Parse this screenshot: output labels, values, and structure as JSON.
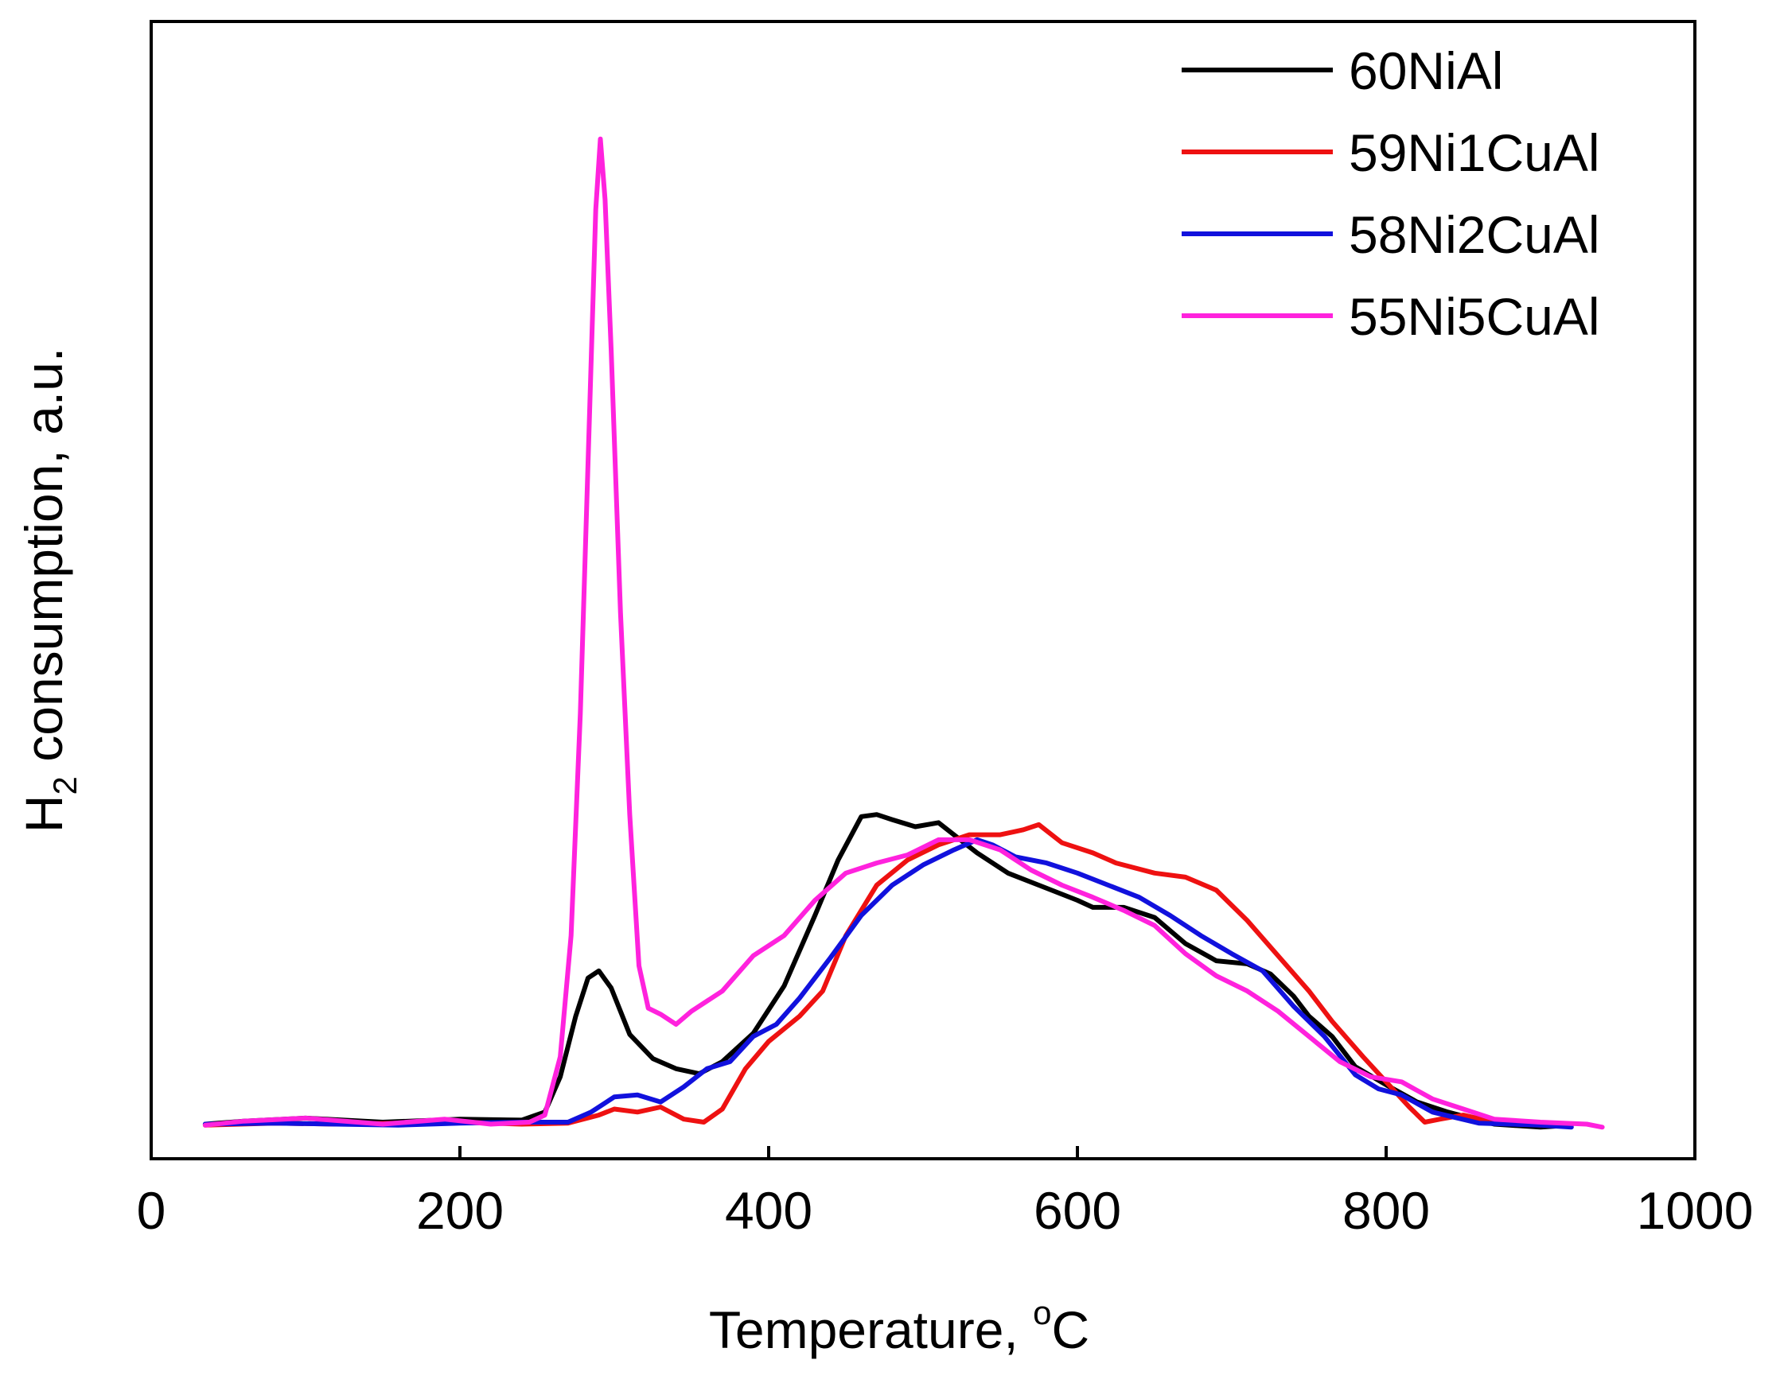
{
  "chart_data": {
    "type": "line",
    "title": "",
    "xlabel": {
      "text": "Temperature, ",
      "sup": "o",
      "unit": "C"
    },
    "ylabel": {
      "prefix": "H",
      "sub": "2",
      "suffix": " consumption, a.u."
    },
    "xlim": [
      0,
      1000
    ],
    "ylim": [
      0,
      1
    ],
    "xticks": [
      0,
      200,
      400,
      600,
      800,
      1000
    ],
    "yticks_visible": false,
    "grid": false,
    "legend_position": "top-right",
    "series": [
      {
        "name": "60NiAl",
        "color": "#000000",
        "points": [
          [
            35,
            0.013
          ],
          [
            60,
            0.016
          ],
          [
            100,
            0.019
          ],
          [
            150,
            0.015
          ],
          [
            200,
            0.018
          ],
          [
            240,
            0.017
          ],
          [
            255,
            0.025
          ],
          [
            265,
            0.06
          ],
          [
            275,
            0.12
          ],
          [
            283,
            0.158
          ],
          [
            290,
            0.165
          ],
          [
            298,
            0.148
          ],
          [
            310,
            0.102
          ],
          [
            325,
            0.078
          ],
          [
            340,
            0.068
          ],
          [
            355,
            0.063
          ],
          [
            370,
            0.075
          ],
          [
            390,
            0.103
          ],
          [
            410,
            0.15
          ],
          [
            430,
            0.22
          ],
          [
            445,
            0.275
          ],
          [
            460,
            0.318
          ],
          [
            470,
            0.32
          ],
          [
            480,
            0.315
          ],
          [
            495,
            0.308
          ],
          [
            510,
            0.312
          ],
          [
            520,
            0.3
          ],
          [
            535,
            0.282
          ],
          [
            555,
            0.262
          ],
          [
            575,
            0.25
          ],
          [
            600,
            0.235
          ],
          [
            610,
            0.228
          ],
          [
            630,
            0.228
          ],
          [
            650,
            0.218
          ],
          [
            670,
            0.192
          ],
          [
            690,
            0.175
          ],
          [
            710,
            0.172
          ],
          [
            725,
            0.162
          ],
          [
            740,
            0.14
          ],
          [
            750,
            0.12
          ],
          [
            765,
            0.1
          ],
          [
            780,
            0.07
          ],
          [
            800,
            0.052
          ],
          [
            820,
            0.035
          ],
          [
            840,
            0.025
          ],
          [
            870,
            0.013
          ],
          [
            900,
            0.01
          ],
          [
            920,
            0.012
          ]
        ]
      },
      {
        "name": "59Ni1CuAl",
        "color": "#ee1111",
        "points": [
          [
            35,
            0.012
          ],
          [
            80,
            0.014
          ],
          [
            120,
            0.013
          ],
          [
            160,
            0.014
          ],
          [
            200,
            0.015
          ],
          [
            240,
            0.013
          ],
          [
            270,
            0.014
          ],
          [
            290,
            0.022
          ],
          [
            300,
            0.028
          ],
          [
            315,
            0.025
          ],
          [
            330,
            0.03
          ],
          [
            345,
            0.018
          ],
          [
            358,
            0.015
          ],
          [
            370,
            0.028
          ],
          [
            385,
            0.068
          ],
          [
            400,
            0.095
          ],
          [
            420,
            0.12
          ],
          [
            435,
            0.145
          ],
          [
            450,
            0.2
          ],
          [
            470,
            0.25
          ],
          [
            490,
            0.275
          ],
          [
            510,
            0.29
          ],
          [
            530,
            0.3
          ],
          [
            550,
            0.3
          ],
          [
            565,
            0.305
          ],
          [
            575,
            0.31
          ],
          [
            590,
            0.292
          ],
          [
            610,
            0.282
          ],
          [
            625,
            0.272
          ],
          [
            650,
            0.262
          ],
          [
            670,
            0.258
          ],
          [
            690,
            0.245
          ],
          [
            710,
            0.215
          ],
          [
            730,
            0.18
          ],
          [
            750,
            0.145
          ],
          [
            765,
            0.115
          ],
          [
            785,
            0.08
          ],
          [
            800,
            0.055
          ],
          [
            815,
            0.03
          ],
          [
            825,
            0.015
          ],
          [
            835,
            0.018
          ],
          [
            850,
            0.022
          ],
          [
            870,
            0.015
          ],
          [
            900,
            0.012
          ]
        ]
      },
      {
        "name": "58Ni2CuAl",
        "color": "#1111dd",
        "points": [
          [
            35,
            0.013
          ],
          [
            80,
            0.014
          ],
          [
            120,
            0.013
          ],
          [
            160,
            0.012
          ],
          [
            200,
            0.014
          ],
          [
            240,
            0.015
          ],
          [
            270,
            0.015
          ],
          [
            285,
            0.025
          ],
          [
            300,
            0.04
          ],
          [
            315,
            0.042
          ],
          [
            330,
            0.035
          ],
          [
            345,
            0.05
          ],
          [
            360,
            0.068
          ],
          [
            375,
            0.075
          ],
          [
            390,
            0.1
          ],
          [
            405,
            0.112
          ],
          [
            420,
            0.138
          ],
          [
            440,
            0.178
          ],
          [
            460,
            0.22
          ],
          [
            480,
            0.25
          ],
          [
            500,
            0.27
          ],
          [
            520,
            0.285
          ],
          [
            535,
            0.295
          ],
          [
            545,
            0.29
          ],
          [
            560,
            0.278
          ],
          [
            580,
            0.272
          ],
          [
            600,
            0.262
          ],
          [
            620,
            0.25
          ],
          [
            640,
            0.238
          ],
          [
            660,
            0.22
          ],
          [
            680,
            0.2
          ],
          [
            700,
            0.182
          ],
          [
            720,
            0.165
          ],
          [
            740,
            0.13
          ],
          [
            760,
            0.1
          ],
          [
            780,
            0.062
          ],
          [
            795,
            0.048
          ],
          [
            810,
            0.042
          ],
          [
            830,
            0.025
          ],
          [
            860,
            0.014
          ],
          [
            900,
            0.012
          ],
          [
            920,
            0.01
          ]
        ]
      },
      {
        "name": "55Ni5CuAl",
        "color": "#ff22dd",
        "points": [
          [
            35,
            0.012
          ],
          [
            60,
            0.016
          ],
          [
            100,
            0.019
          ],
          [
            150,
            0.013
          ],
          [
            190,
            0.018
          ],
          [
            220,
            0.013
          ],
          [
            245,
            0.015
          ],
          [
            255,
            0.022
          ],
          [
            265,
            0.08
          ],
          [
            272,
            0.2
          ],
          [
            278,
            0.42
          ],
          [
            284,
            0.72
          ],
          [
            288,
            0.92
          ],
          [
            291,
            0.99
          ],
          [
            294,
            0.93
          ],
          [
            298,
            0.78
          ],
          [
            304,
            0.52
          ],
          [
            310,
            0.32
          ],
          [
            316,
            0.17
          ],
          [
            322,
            0.128
          ],
          [
            330,
            0.122
          ],
          [
            340,
            0.112
          ],
          [
            350,
            0.125
          ],
          [
            370,
            0.145
          ],
          [
            390,
            0.18
          ],
          [
            410,
            0.2
          ],
          [
            430,
            0.235
          ],
          [
            450,
            0.262
          ],
          [
            470,
            0.272
          ],
          [
            490,
            0.28
          ],
          [
            510,
            0.295
          ],
          [
            530,
            0.295
          ],
          [
            550,
            0.285
          ],
          [
            570,
            0.265
          ],
          [
            590,
            0.25
          ],
          [
            610,
            0.238
          ],
          [
            630,
            0.225
          ],
          [
            650,
            0.21
          ],
          [
            670,
            0.182
          ],
          [
            690,
            0.16
          ],
          [
            710,
            0.145
          ],
          [
            730,
            0.125
          ],
          [
            750,
            0.1
          ],
          [
            770,
            0.075
          ],
          [
            790,
            0.06
          ],
          [
            810,
            0.055
          ],
          [
            830,
            0.038
          ],
          [
            850,
            0.028
          ],
          [
            870,
            0.018
          ],
          [
            900,
            0.015
          ],
          [
            930,
            0.013
          ],
          [
            940,
            0.01
          ]
        ]
      }
    ]
  }
}
